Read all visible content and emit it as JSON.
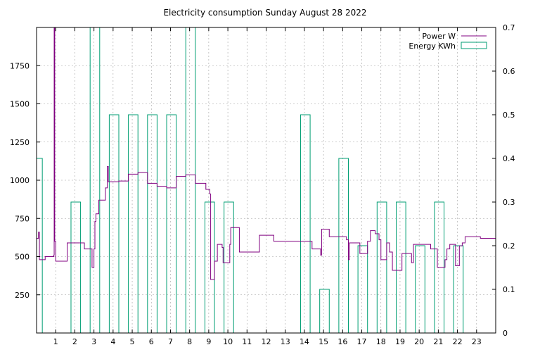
{
  "chart_data": {
    "type": "line",
    "title": "Electricity consumption Sunday August 28 2022",
    "xlabel": "",
    "ylabel": "",
    "y2label": "",
    "xlim": [
      0,
      24
    ],
    "ylim": [
      0,
      2000
    ],
    "y2lim": [
      0,
      0.7
    ],
    "x_ticks": [
      1,
      2,
      3,
      4,
      5,
      6,
      7,
      8,
      9,
      10,
      11,
      12,
      13,
      14,
      15,
      16,
      17,
      18,
      19,
      20,
      21,
      22,
      23
    ],
    "x_tick_labels": [
      "1",
      "2",
      "3",
      "4",
      "5",
      "6",
      "7",
      "8",
      "9",
      "10",
      "11",
      "12",
      "13",
      "14",
      "15",
      "16",
      "17",
      "18",
      "19",
      "20",
      "21",
      "22",
      "23"
    ],
    "y_ticks": [
      250,
      500,
      750,
      1000,
      1250,
      1500,
      1750
    ],
    "y_tick_labels": [
      "250",
      "500",
      "750",
      "1000",
      "1250",
      "1500",
      "1750"
    ],
    "y2_ticks": [
      0,
      0.1,
      0.2,
      0.3,
      0.4,
      0.5,
      0.6,
      0.7
    ],
    "y2_tick_labels": [
      "0",
      "0.1",
      "0.2",
      "0.3",
      "0.4",
      "0.5",
      "0.6",
      "0.7"
    ],
    "grid": true,
    "legend_position": "top-right",
    "series": [
      {
        "name": "Power W",
        "type": "step",
        "axis": "y1",
        "color": "#800080",
        "points": [
          [
            0.0,
            620
          ],
          [
            0.1,
            660
          ],
          [
            0.15,
            480
          ],
          [
            0.45,
            500
          ],
          [
            0.9,
            510
          ],
          [
            0.92,
            2000
          ],
          [
            0.95,
            600
          ],
          [
            1.0,
            470
          ],
          [
            1.6,
            590
          ],
          [
            2.5,
            550
          ],
          [
            2.9,
            430
          ],
          [
            3.0,
            550
          ],
          [
            3.05,
            730
          ],
          [
            3.1,
            780
          ],
          [
            3.25,
            870
          ],
          [
            3.6,
            950
          ],
          [
            3.7,
            1090
          ],
          [
            3.75,
            990
          ],
          [
            4.3,
            995
          ],
          [
            4.8,
            1040
          ],
          [
            5.3,
            1050
          ],
          [
            5.8,
            980
          ],
          [
            6.3,
            960
          ],
          [
            6.8,
            950
          ],
          [
            7.3,
            1025
          ],
          [
            7.8,
            1035
          ],
          [
            8.3,
            980
          ],
          [
            8.85,
            940
          ],
          [
            9.05,
            910
          ],
          [
            9.1,
            350
          ],
          [
            9.3,
            470
          ],
          [
            9.45,
            580
          ],
          [
            9.7,
            560
          ],
          [
            9.75,
            460
          ],
          [
            10.1,
            580
          ],
          [
            10.15,
            690
          ],
          [
            10.6,
            530
          ],
          [
            11.6,
            530
          ],
          [
            11.65,
            640
          ],
          [
            12.4,
            600
          ],
          [
            14.4,
            550
          ],
          [
            14.85,
            510
          ],
          [
            14.9,
            680
          ],
          [
            15.3,
            630
          ],
          [
            16.2,
            610
          ],
          [
            16.3,
            480
          ],
          [
            16.35,
            590
          ],
          [
            16.9,
            520
          ],
          [
            17.3,
            600
          ],
          [
            17.45,
            670
          ],
          [
            17.7,
            650
          ],
          [
            17.9,
            610
          ],
          [
            18.0,
            480
          ],
          [
            18.3,
            590
          ],
          [
            18.45,
            530
          ],
          [
            18.6,
            410
          ],
          [
            19.1,
            520
          ],
          [
            19.6,
            460
          ],
          [
            19.7,
            580
          ],
          [
            20.6,
            550
          ],
          [
            20.95,
            430
          ],
          [
            21.35,
            480
          ],
          [
            21.45,
            550
          ],
          [
            21.6,
            580
          ],
          [
            21.9,
            440
          ],
          [
            22.1,
            570
          ],
          [
            22.25,
            590
          ],
          [
            22.4,
            630
          ],
          [
            23.2,
            620
          ],
          [
            24.0,
            620
          ]
        ]
      },
      {
        "name": "Energy KWh",
        "type": "bar",
        "axis": "y2",
        "color": "#009e73",
        "bars": [
          [
            0.0,
            0.3,
            0.4
          ],
          [
            1.8,
            2.3,
            0.3
          ],
          [
            2.8,
            3.3,
            0.9
          ],
          [
            3.8,
            4.3,
            0.5
          ],
          [
            4.8,
            5.3,
            0.5
          ],
          [
            5.8,
            6.3,
            0.5
          ],
          [
            6.8,
            7.3,
            0.5
          ],
          [
            7.8,
            8.3,
            0.9
          ],
          [
            8.8,
            9.3,
            0.3
          ],
          [
            9.8,
            10.3,
            0.3
          ],
          [
            13.8,
            14.3,
            0.5
          ],
          [
            14.8,
            15.3,
            0.1
          ],
          [
            15.8,
            16.3,
            0.4
          ],
          [
            16.8,
            17.3,
            0.2
          ],
          [
            17.8,
            18.3,
            0.3
          ],
          [
            18.8,
            19.3,
            0.3
          ],
          [
            19.8,
            20.3,
            0.2
          ],
          [
            20.8,
            21.3,
            0.3
          ],
          [
            21.8,
            22.3,
            0.2
          ]
        ]
      }
    ]
  }
}
